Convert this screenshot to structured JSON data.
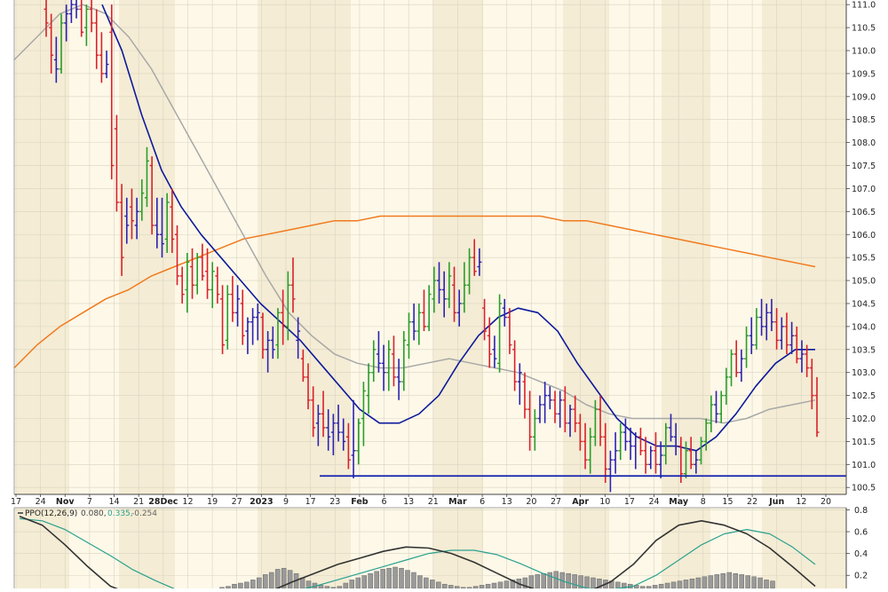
{
  "chart_data": [
    {
      "type": "ohlc_bar",
      "x_tick_labels": [
        "17",
        "24",
        "Nov",
        "7",
        "14",
        "21",
        "28Dec",
        "12",
        "19",
        "27",
        "2023",
        "9",
        "17",
        "23",
        "Feb",
        "6",
        "13",
        "21",
        "Mar",
        "6",
        "13",
        "20",
        "27",
        "Apr",
        "10",
        "17",
        "24",
        "May",
        "8",
        "15",
        "22",
        "Jun",
        "12",
        "20"
      ],
      "y_tick_labels": [
        "100.5",
        "101.0",
        "101.5",
        "102.0",
        "102.5",
        "103.0",
        "103.5",
        "104.0",
        "104.5",
        "105.0",
        "105.5",
        "106.0",
        "106.5",
        "107.0",
        "107.5",
        "108.0",
        "108.5",
        "109.0",
        "109.5",
        "110.0",
        "110.5",
        "111.0"
      ],
      "ylim": [
        100.35,
        111.1
      ],
      "support_line": 100.75,
      "colors": {
        "up": "#2a9d2a",
        "down": "#d9202a",
        "neutral": "#2b22b0",
        "ma_short": "#0d1a9c",
        "ma_mid": "#a8a8a8",
        "ma_long": "#f07a1e",
        "support": "#1020b0",
        "band": "#f4ecd4",
        "background": "#fdf8e8",
        "grid": "#d9d4c2"
      },
      "bars": [
        [
          110.9,
          111.2,
          110.3,
          110.6
        ],
        [
          110.5,
          110.8,
          109.5,
          109.9
        ],
        [
          109.8,
          110.3,
          109.3,
          109.6
        ],
        [
          109.6,
          110.8,
          109.5,
          110.6
        ],
        [
          110.6,
          111.0,
          110.2,
          110.8
        ],
        [
          110.8,
          111.2,
          110.6,
          111.0
        ],
        [
          111.0,
          111.4,
          110.7,
          110.9
        ],
        [
          110.9,
          111.1,
          110.3,
          110.4
        ],
        [
          110.5,
          111.0,
          110.1,
          110.9
        ],
        [
          110.9,
          111.2,
          110.4,
          110.6
        ],
        [
          110.6,
          110.9,
          109.6,
          109.9
        ],
        [
          109.9,
          110.4,
          109.3,
          109.5
        ],
        [
          109.5,
          110.0,
          109.4,
          109.7
        ],
        [
          110.4,
          111.0,
          107.2,
          107.5
        ],
        [
          108.3,
          108.6,
          106.5,
          106.7
        ],
        [
          106.7,
          107.1,
          105.1,
          105.5
        ],
        [
          106.4,
          106.8,
          105.8,
          106.2
        ],
        [
          106.6,
          107.0,
          105.9,
          106.3
        ],
        [
          106.2,
          106.8,
          105.9,
          106.5
        ],
        [
          106.5,
          107.2,
          106.3,
          106.9
        ],
        [
          106.8,
          107.9,
          106.6,
          107.6
        ],
        [
          107.5,
          107.7,
          106.0,
          106.2
        ],
        [
          106.2,
          106.8,
          105.7,
          106.0
        ],
        [
          106.0,
          106.8,
          105.5,
          105.8
        ],
        [
          105.9,
          106.9,
          105.6,
          106.7
        ],
        [
          106.6,
          107.0,
          105.6,
          105.9
        ],
        [
          106.0,
          106.2,
          104.9,
          105.1
        ],
        [
          105.1,
          105.3,
          104.5,
          104.7
        ],
        [
          104.8,
          105.6,
          104.3,
          105.4
        ],
        [
          105.3,
          105.7,
          104.6,
          104.9
        ],
        [
          104.9,
          105.6,
          104.7,
          105.5
        ],
        [
          105.5,
          105.8,
          105.0,
          105.1
        ],
        [
          105.2,
          105.7,
          104.6,
          104.8
        ],
        [
          104.8,
          105.4,
          104.4,
          105.2
        ],
        [
          105.1,
          105.3,
          104.5,
          104.7
        ],
        [
          104.6,
          104.9,
          103.4,
          103.6
        ],
        [
          103.7,
          104.9,
          103.5,
          104.7
        ],
        [
          104.7,
          105.1,
          104.1,
          104.3
        ],
        [
          104.3,
          104.9,
          104.0,
          104.6
        ],
        [
          104.5,
          104.8,
          103.6,
          103.8
        ],
        [
          103.9,
          104.2,
          103.4,
          104.1
        ],
        [
          104.1,
          104.4,
          103.6,
          104.2
        ],
        [
          104.2,
          104.5,
          103.7,
          104.3
        ],
        [
          104.2,
          104.3,
          103.3,
          103.5
        ],
        [
          103.5,
          103.9,
          103.0,
          103.7
        ],
        [
          103.7,
          104.0,
          103.3,
          103.5
        ],
        [
          103.6,
          104.4,
          103.3,
          104.3
        ],
        [
          104.3,
          104.8,
          103.6,
          104.0
        ],
        [
          104.0,
          105.2,
          103.7,
          104.9
        ],
        [
          104.9,
          105.5,
          104.3,
          104.6
        ],
        [
          103.7,
          104.2,
          103.3,
          103.9
        ],
        [
          103.3,
          103.5,
          102.8,
          102.9
        ],
        [
          102.9,
          103.2,
          102.2,
          102.4
        ],
        [
          102.4,
          102.7,
          101.6,
          101.8
        ],
        [
          101.9,
          102.3,
          101.4,
          102.1
        ],
        [
          102.1,
          102.6,
          101.6,
          101.8
        ],
        [
          101.8,
          102.2,
          101.3,
          101.6
        ],
        [
          101.7,
          102.1,
          101.2,
          101.9
        ],
        [
          101.9,
          102.3,
          101.5,
          101.7
        ],
        [
          101.7,
          102.0,
          101.3,
          101.5
        ],
        [
          101.6,
          101.9,
          100.9,
          101.1
        ],
        [
          101.2,
          102.4,
          100.7,
          101.3
        ],
        [
          101.3,
          102.0,
          101.0,
          101.9
        ],
        [
          102.0,
          102.8,
          101.4,
          102.6
        ],
        [
          102.5,
          103.2,
          102.1,
          103.0
        ],
        [
          103.0,
          103.7,
          102.8,
          103.5
        ],
        [
          103.4,
          103.9,
          103.0,
          103.2
        ],
        [
          103.2,
          103.6,
          102.6,
          103.0
        ],
        [
          103.0,
          103.7,
          102.6,
          103.5
        ],
        [
          103.4,
          103.8,
          102.7,
          102.9
        ],
        [
          102.9,
          103.3,
          102.4,
          102.8
        ],
        [
          102.8,
          103.9,
          102.6,
          103.7
        ],
        [
          103.6,
          104.3,
          103.3,
          104.1
        ],
        [
          104.1,
          104.5,
          103.7,
          103.9
        ],
        [
          103.9,
          104.5,
          103.6,
          104.3
        ],
        [
          104.3,
          104.8,
          103.9,
          104.0
        ],
        [
          104.0,
          104.9,
          103.9,
          104.7
        ],
        [
          104.6,
          105.3,
          104.3,
          105.0
        ],
        [
          105.0,
          105.4,
          104.5,
          104.8
        ],
        [
          104.8,
          105.2,
          104.2,
          104.6
        ],
        [
          104.6,
          105.4,
          104.4,
          105.1
        ],
        [
          104.9,
          105.3,
          104.1,
          104.3
        ],
        [
          104.3,
          104.8,
          104.0,
          104.5
        ],
        [
          104.5,
          105.4,
          104.3,
          104.9
        ],
        [
          104.9,
          105.7,
          104.7,
          105.5
        ],
        [
          105.5,
          105.9,
          105.1,
          105.2
        ],
        [
          105.3,
          105.7,
          105.1,
          105.4
        ],
        [
          104.4,
          104.6,
          103.7,
          103.9
        ],
        [
          103.8,
          104.2,
          103.1,
          103.4
        ],
        [
          103.5,
          103.8,
          103.1,
          103.3
        ],
        [
          103.2,
          104.7,
          103.0,
          104.5
        ],
        [
          104.4,
          104.6,
          104.0,
          104.2
        ],
        [
          104.2,
          104.4,
          103.4,
          103.6
        ],
        [
          103.5,
          103.7,
          102.6,
          102.8
        ],
        [
          102.8,
          103.2,
          102.3,
          103.0
        ],
        [
          102.8,
          103.0,
          102.0,
          102.2
        ],
        [
          102.2,
          102.6,
          101.3,
          101.6
        ],
        [
          101.6,
          102.2,
          101.3,
          102.0
        ],
        [
          102.0,
          102.5,
          101.9,
          102.3
        ],
        [
          102.3,
          102.8,
          101.9,
          102.5
        ],
        [
          102.5,
          102.7,
          102.2,
          102.4
        ],
        [
          102.4,
          102.6,
          101.9,
          102.1
        ],
        [
          102.1,
          102.6,
          101.8,
          102.4
        ],
        [
          102.4,
          102.7,
          101.7,
          101.9
        ],
        [
          101.9,
          102.3,
          101.6,
          102.2
        ],
        [
          102.2,
          102.5,
          101.7,
          101.9
        ],
        [
          101.9,
          102.1,
          101.3,
          101.5
        ],
        [
          101.5,
          101.9,
          100.9,
          101.1
        ],
        [
          101.1,
          101.8,
          100.8,
          101.6
        ],
        [
          101.6,
          102.4,
          101.4,
          102.2
        ],
        [
          102.2,
          102.5,
          101.4,
          101.6
        ],
        [
          101.6,
          101.9,
          100.6,
          100.9
        ],
        [
          100.9,
          101.3,
          100.4,
          101.1
        ],
        [
          101.1,
          101.7,
          100.8,
          101.3
        ],
        [
          101.3,
          101.9,
          101.1,
          101.7
        ],
        [
          101.7,
          102.0,
          101.3,
          101.5
        ],
        [
          101.5,
          101.8,
          101.1,
          101.4
        ],
        [
          101.4,
          101.7,
          100.9,
          101.6
        ],
        [
          101.6,
          101.8,
          101.2,
          101.3
        ],
        [
          101.3,
          101.6,
          100.8,
          101.0
        ],
        [
          101.0,
          101.4,
          100.9,
          101.3
        ],
        [
          101.3,
          101.7,
          100.8,
          101.0
        ],
        [
          101.0,
          101.5,
          100.7,
          101.2
        ],
        [
          101.2,
          101.9,
          101.0,
          101.8
        ],
        [
          101.8,
          102.1,
          101.5,
          101.6
        ],
        [
          101.6,
          101.9,
          101.2,
          101.4
        ],
        [
          101.4,
          101.6,
          100.6,
          100.8
        ],
        [
          100.8,
          101.5,
          100.7,
          101.3
        ],
        [
          101.3,
          101.6,
          100.9,
          101.0
        ],
        [
          101.0,
          101.3,
          100.8,
          101.1
        ],
        [
          101.1,
          101.6,
          101.0,
          101.5
        ],
        [
          101.5,
          102.0,
          101.3,
          101.9
        ],
        [
          101.9,
          102.5,
          101.7,
          102.3
        ],
        [
          102.3,
          102.6,
          101.9,
          102.1
        ],
        [
          102.1,
          102.6,
          101.9,
          102.5
        ],
        [
          102.5,
          103.1,
          102.3,
          102.9
        ],
        [
          102.9,
          103.5,
          102.7,
          103.4
        ],
        [
          103.4,
          103.7,
          102.9,
          103.0
        ],
        [
          103.0,
          103.5,
          102.8,
          103.3
        ],
        [
          103.3,
          104.0,
          103.1,
          103.8
        ],
        [
          103.8,
          104.2,
          103.4,
          103.6
        ],
        [
          103.6,
          104.4,
          103.5,
          104.2
        ],
        [
          104.2,
          104.6,
          103.8,
          104.0
        ],
        [
          104.0,
          104.5,
          103.7,
          104.3
        ],
        [
          104.3,
          104.6,
          103.9,
          104.1
        ],
        [
          104.1,
          104.4,
          103.5,
          103.7
        ],
        [
          103.7,
          104.2,
          103.5,
          104.0
        ],
        [
          104.0,
          104.3,
          103.4,
          103.6
        ],
        [
          103.6,
          104.1,
          103.4,
          103.8
        ],
        [
          103.8,
          104.0,
          103.2,
          103.3
        ],
        [
          103.3,
          103.7,
          103.0,
          103.4
        ],
        [
          103.4,
          103.6,
          102.9,
          103.1
        ],
        [
          103.1,
          103.3,
          102.2,
          102.5
        ],
        [
          102.5,
          102.9,
          101.6,
          101.7
        ]
      ],
      "ma_short": [
        111.0,
        110.0,
        108.6,
        107.4,
        106.6,
        106.0,
        105.5,
        105.0,
        104.5,
        104.1,
        103.7,
        103.2,
        102.7,
        102.2,
        101.9,
        101.9,
        102.1,
        102.5,
        103.2,
        103.8,
        104.2,
        104.4,
        104.3,
        103.9,
        103.2,
        102.6,
        102.0,
        101.6,
        101.4,
        101.4,
        101.3,
        101.6,
        102.1,
        102.7,
        103.2,
        103.5,
        103.5
      ],
      "ma_mid": [
        109.8,
        110.3,
        110.8,
        111.0,
        110.8,
        110.3,
        109.6,
        108.7,
        107.8,
        106.9,
        106.0,
        105.1,
        104.3,
        103.8,
        103.4,
        103.2,
        103.1,
        103.1,
        103.2,
        103.3,
        103.2,
        103.1,
        103.0,
        102.8,
        102.6,
        102.3,
        102.1,
        102.0,
        102.0,
        102.0,
        102.0,
        101.9,
        102.0,
        102.2,
        102.3,
        102.4
      ],
      "ma_long": [
        103.1,
        103.6,
        104.0,
        104.3,
        104.6,
        104.8,
        105.1,
        105.3,
        105.5,
        105.7,
        105.9,
        106.0,
        106.1,
        106.2,
        106.3,
        106.3,
        106.4,
        106.4,
        106.4,
        106.4,
        106.4,
        106.4,
        106.4,
        106.4,
        106.3,
        106.3,
        106.2,
        106.1,
        106.0,
        105.9,
        105.8,
        105.7,
        105.6,
        105.5,
        105.4,
        105.3
      ]
    },
    {
      "type": "histogram_line",
      "legend": {
        "label": "PPO(12,26,9)",
        "v1": "0.080,",
        "v2": "0.335,",
        "v3": "-0.254"
      },
      "y_tick_labels": [
        "0.8",
        "0.6",
        "0.4",
        "0.2"
      ],
      "ylim": [
        0.08,
        0.82
      ],
      "colors": {
        "ppo": "#333333",
        "signal": "#2aa18f",
        "hist": "#9a9a9a"
      },
      "ppo": [
        0.74,
        0.66,
        0.48,
        0.28,
        0.1,
        0.02,
        -0.05,
        -0.12,
        -0.15,
        -0.12,
        -0.05,
        0.05,
        0.14,
        0.22,
        0.3,
        0.36,
        0.42,
        0.46,
        0.45,
        0.4,
        0.32,
        0.22,
        0.12,
        0.05,
        0.02,
        0.05,
        0.14,
        0.3,
        0.52,
        0.66,
        0.7,
        0.66,
        0.58,
        0.45,
        0.28,
        0.1
      ],
      "signal": [
        0.72,
        0.7,
        0.62,
        0.5,
        0.38,
        0.25,
        0.15,
        0.06,
        0.0,
        -0.04,
        -0.04,
        0.0,
        0.05,
        0.1,
        0.16,
        0.22,
        0.28,
        0.34,
        0.4,
        0.43,
        0.43,
        0.39,
        0.31,
        0.22,
        0.14,
        0.08,
        0.07,
        0.1,
        0.2,
        0.34,
        0.48,
        0.58,
        0.62,
        0.58,
        0.46,
        0.3
      ],
      "hist": [
        0.01,
        0.02,
        0.04,
        0.05,
        0.06,
        0.08,
        0.1,
        0.13,
        0.15,
        0.18,
        0.19,
        0.17,
        0.14,
        0.1,
        0.07,
        0.05,
        0.03,
        0.02,
        0.01,
        0.02,
        0.05,
        0.08,
        0.1,
        0.12,
        0.14,
        0.16,
        0.18,
        0.19,
        0.2,
        0.19,
        0.17,
        0.15,
        0.12,
        0.1,
        0.08,
        0.06,
        0.04,
        0.03,
        0.02,
        0.01,
        0.01,
        0.02,
        0.03,
        0.04,
        0.05,
        0.06,
        0.07,
        0.08,
        0.09,
        0.1,
        0.12,
        0.13,
        0.14,
        0.15,
        0.16,
        0.15,
        0.14,
        0.13,
        0.12,
        0.11,
        0.1,
        0.09,
        0.08,
        0.07,
        0.06,
        0.05,
        0.04,
        0.03,
        0.02,
        0.02,
        0.03,
        0.04,
        0.05,
        0.06,
        0.07,
        0.08,
        0.09,
        0.1,
        0.11,
        0.12,
        0.13,
        0.14,
        0.15,
        0.14,
        0.13,
        0.12,
        0.11,
        0.1,
        0.08,
        0.07
      ]
    }
  ]
}
